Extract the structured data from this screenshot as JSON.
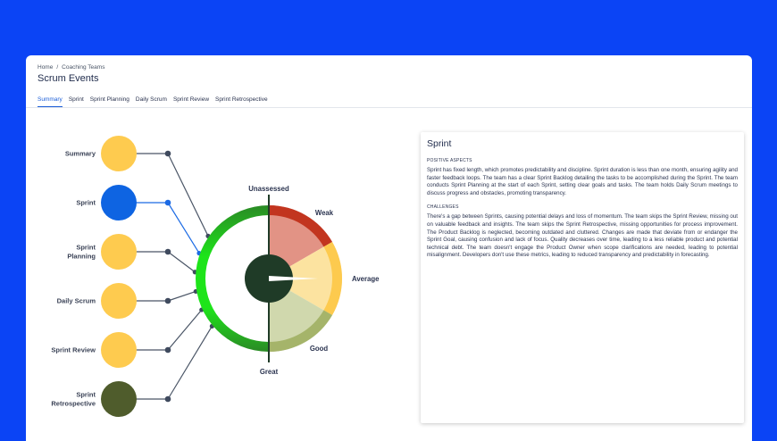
{
  "breadcrumb": {
    "home": "Home",
    "separator": "/",
    "current": "Coaching Teams"
  },
  "page_title": "Scrum Events",
  "tabs": [
    {
      "label": "Summary",
      "active": true
    },
    {
      "label": "Sprint",
      "active": false
    },
    {
      "label": "Sprint Planning",
      "active": false
    },
    {
      "label": "Daily Scrum",
      "active": false
    },
    {
      "label": "Sprint Review",
      "active": false
    },
    {
      "label": "Sprint Retrospective",
      "active": false
    }
  ],
  "events": [
    {
      "label_lines": [
        "Summary"
      ],
      "color": "#fecb4f"
    },
    {
      "label_lines": [
        "Sprint"
      ],
      "color": "#0e64e2"
    },
    {
      "label_lines": [
        "Sprint",
        "Planning"
      ],
      "color": "#fecb4f"
    },
    {
      "label_lines": [
        "Daily Scrum"
      ],
      "color": "#fecb4f"
    },
    {
      "label_lines": [
        "Sprint Review"
      ],
      "color": "#fecb4f"
    },
    {
      "label_lines": [
        "Sprint",
        "Retrospective"
      ],
      "color": "#4f5c2c"
    }
  ],
  "gauge": {
    "top_label": "Unassessed",
    "bottom_label": "Great",
    "segments": [
      {
        "label": "Weak",
        "color": "#e29385",
        "edge_color": "#c2351f"
      },
      {
        "label": "Average",
        "color": "#fce3a0",
        "edge_color": "#fdca4e"
      },
      {
        "label": "Good",
        "color": "#d0d8ad",
        "edge_color": "#a5b46a"
      }
    ],
    "ring_colors": {
      "bright": "#1ee41a",
      "dark": "#2a8a25"
    },
    "hub_color": "#1f3b27"
  },
  "detail": {
    "title": "Sprint",
    "positive_label": "POSITIVE ASPECTS",
    "positive_text": "Sprint has fixed length, which promotes predictability and discipline. Sprint duration is less than one month, ensuring agility and faster feedback loops. The team has a clear Sprint Backlog detailing the tasks to be accomplished during the Sprint. The team conducts Sprint Planning at the start of each Sprint, setting clear goals and tasks. The team holds Daily Scrum meetings to discuss progress and obstacles, promoting transparency.",
    "challenges_label": "CHALLENGES",
    "challenges_text": "There's a gap between Sprints, causing potential delays and loss of momentum. The team skips the Sprint Review, missing out on valuable feedback and insights. The team skips the Sprint Retrospective, missing opportunities for process improvement. The Product Backlog is neglected, becoming outdated and cluttered. Changes are made that deviate from or endanger the Sprint Goal, causing confusion and lack of focus. Quality decreases over time, leading to a less reliable product and potential technical debt. The team doesn't engage the Product Owner when scope clarifications are needed, leading to potential misalignment. Developers don't use these metrics, leading to reduced transparency and predictability in forecasting."
  }
}
